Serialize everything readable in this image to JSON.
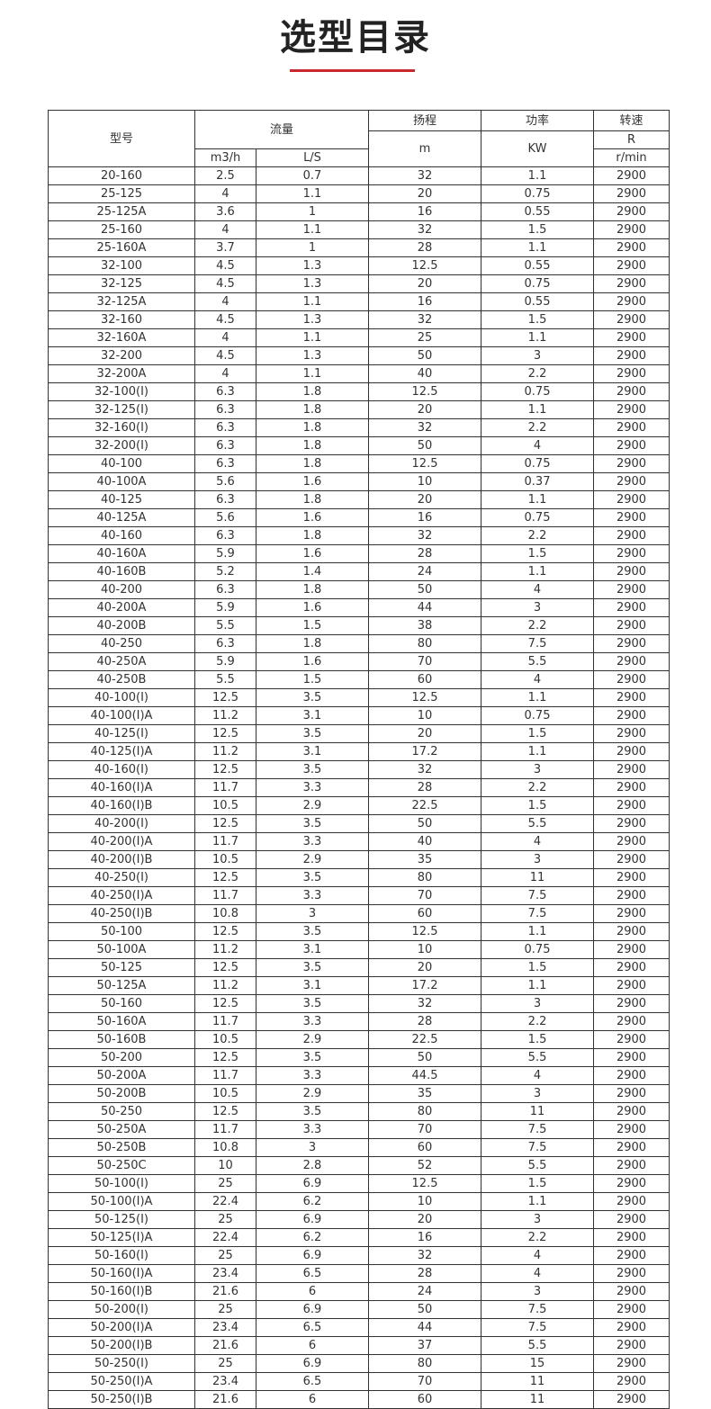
{
  "header": {
    "title": "选型目录"
  },
  "table": {
    "columns": {
      "model": "型号",
      "flow": "流量",
      "flow_m3h": "m3/h",
      "flow_ls": "L/S",
      "head": "扬程",
      "head_unit": "m",
      "power": "功率",
      "power_unit": "KW",
      "speed": "转速",
      "speed_unit_top": "R",
      "speed_unit": "r/min"
    },
    "rows": [
      [
        "20-160",
        "2.5",
        "0.7",
        "32",
        "1.1",
        "2900"
      ],
      [
        "25-125",
        "4",
        "1.1",
        "20",
        "0.75",
        "2900"
      ],
      [
        "25-125A",
        "3.6",
        "1",
        "16",
        "0.55",
        "2900"
      ],
      [
        "25-160",
        "4",
        "1.1",
        "32",
        "1.5",
        "2900"
      ],
      [
        "25-160A",
        "3.7",
        "1",
        "28",
        "1.1",
        "2900"
      ],
      [
        "32-100",
        "4.5",
        "1.3",
        "12.5",
        "0.55",
        "2900"
      ],
      [
        "32-125",
        "4.5",
        "1.3",
        "20",
        "0.75",
        "2900"
      ],
      [
        "32-125A",
        "4",
        "1.1",
        "16",
        "0.55",
        "2900"
      ],
      [
        "32-160",
        "4.5",
        "1.3",
        "32",
        "1.5",
        "2900"
      ],
      [
        "32-160A",
        "4",
        "1.1",
        "25",
        "1.1",
        "2900"
      ],
      [
        "32-200",
        "4.5",
        "1.3",
        "50",
        "3",
        "2900"
      ],
      [
        "32-200A",
        "4",
        "1.1",
        "40",
        "2.2",
        "2900"
      ],
      [
        "32-100(I)",
        "6.3",
        "1.8",
        "12.5",
        "0.75",
        "2900"
      ],
      [
        "32-125(I)",
        "6.3",
        "1.8",
        "20",
        "1.1",
        "2900"
      ],
      [
        "32-160(I)",
        "6.3",
        "1.8",
        "32",
        "2.2",
        "2900"
      ],
      [
        "32-200(I)",
        "6.3",
        "1.8",
        "50",
        "4",
        "2900"
      ],
      [
        "40-100",
        "6.3",
        "1.8",
        "12.5",
        "0.75",
        "2900"
      ],
      [
        "40-100A",
        "5.6",
        "1.6",
        "10",
        "0.37",
        "2900"
      ],
      [
        "40-125",
        "6.3",
        "1.8",
        "20",
        "1.1",
        "2900"
      ],
      [
        "40-125A",
        "5.6",
        "1.6",
        "16",
        "0.75",
        "2900"
      ],
      [
        "40-160",
        "6.3",
        "1.8",
        "32",
        "2.2",
        "2900"
      ],
      [
        "40-160A",
        "5.9",
        "1.6",
        "28",
        "1.5",
        "2900"
      ],
      [
        "40-160B",
        "5.2",
        "1.4",
        "24",
        "1.1",
        "2900"
      ],
      [
        "40-200",
        "6.3",
        "1.8",
        "50",
        "4",
        "2900"
      ],
      [
        "40-200A",
        "5.9",
        "1.6",
        "44",
        "3",
        "2900"
      ],
      [
        "40-200B",
        "5.5",
        "1.5",
        "38",
        "2.2",
        "2900"
      ],
      [
        "40-250",
        "6.3",
        "1.8",
        "80",
        "7.5",
        "2900"
      ],
      [
        "40-250A",
        "5.9",
        "1.6",
        "70",
        "5.5",
        "2900"
      ],
      [
        "40-250B",
        "5.5",
        "1.5",
        "60",
        "4",
        "2900"
      ],
      [
        "40-100(I)",
        "12.5",
        "3.5",
        "12.5",
        "1.1",
        "2900"
      ],
      [
        "40-100(I)A",
        "11.2",
        "3.1",
        "10",
        "0.75",
        "2900"
      ],
      [
        "40-125(I)",
        "12.5",
        "3.5",
        "20",
        "1.5",
        "2900"
      ],
      [
        "40-125(I)A",
        "11.2",
        "3.1",
        "17.2",
        "1.1",
        "2900"
      ],
      [
        "40-160(I)",
        "12.5",
        "3.5",
        "32",
        "3",
        "2900"
      ],
      [
        "40-160(I)A",
        "11.7",
        "3.3",
        "28",
        "2.2",
        "2900"
      ],
      [
        "40-160(I)B",
        "10.5",
        "2.9",
        "22.5",
        "1.5",
        "2900"
      ],
      [
        "40-200(I)",
        "12.5",
        "3.5",
        "50",
        "5.5",
        "2900"
      ],
      [
        "40-200(I)A",
        "11.7",
        "3.3",
        "40",
        "4",
        "2900"
      ],
      [
        "40-200(I)B",
        "10.5",
        "2.9",
        "35",
        "3",
        "2900"
      ],
      [
        "40-250(I)",
        "12.5",
        "3.5",
        "80",
        "11",
        "2900"
      ],
      [
        "40-250(I)A",
        "11.7",
        "3.3",
        "70",
        "7.5",
        "2900"
      ],
      [
        "40-250(I)B",
        "10.8",
        "3",
        "60",
        "7.5",
        "2900"
      ],
      [
        "50-100",
        "12.5",
        "3.5",
        "12.5",
        "1.1",
        "2900"
      ],
      [
        "50-100A",
        "11.2",
        "3.1",
        "10",
        "0.75",
        "2900"
      ],
      [
        "50-125",
        "12.5",
        "3.5",
        "20",
        "1.5",
        "2900"
      ],
      [
        "50-125A",
        "11.2",
        "3.1",
        "17.2",
        "1.1",
        "2900"
      ],
      [
        "50-160",
        "12.5",
        "3.5",
        "32",
        "3",
        "2900"
      ],
      [
        "50-160A",
        "11.7",
        "3.3",
        "28",
        "2.2",
        "2900"
      ],
      [
        "50-160B",
        "10.5",
        "2.9",
        "22.5",
        "1.5",
        "2900"
      ],
      [
        "50-200",
        "12.5",
        "3.5",
        "50",
        "5.5",
        "2900"
      ],
      [
        "50-200A",
        "11.7",
        "3.3",
        "44.5",
        "4",
        "2900"
      ],
      [
        "50-200B",
        "10.5",
        "2.9",
        "35",
        "3",
        "2900"
      ],
      [
        "50-250",
        "12.5",
        "3.5",
        "80",
        "11",
        "2900"
      ],
      [
        "50-250A",
        "11.7",
        "3.3",
        "70",
        "7.5",
        "2900"
      ],
      [
        "50-250B",
        "10.8",
        "3",
        "60",
        "7.5",
        "2900"
      ],
      [
        "50-250C",
        "10",
        "2.8",
        "52",
        "5.5",
        "2900"
      ],
      [
        "50-100(I)",
        "25",
        "6.9",
        "12.5",
        "1.5",
        "2900"
      ],
      [
        "50-100(I)A",
        "22.4",
        "6.2",
        "10",
        "1.1",
        "2900"
      ],
      [
        "50-125(I)",
        "25",
        "6.9",
        "20",
        "3",
        "2900"
      ],
      [
        "50-125(I)A",
        "22.4",
        "6.2",
        "16",
        "2.2",
        "2900"
      ],
      [
        "50-160(I)",
        "25",
        "6.9",
        "32",
        "4",
        "2900"
      ],
      [
        "50-160(I)A",
        "23.4",
        "6.5",
        "28",
        "4",
        "2900"
      ],
      [
        "50-160(I)B",
        "21.6",
        "6",
        "24",
        "3",
        "2900"
      ],
      [
        "50-200(I)",
        "25",
        "6.9",
        "50",
        "7.5",
        "2900"
      ],
      [
        "50-200(I)A",
        "23.4",
        "6.5",
        "44",
        "7.5",
        "2900"
      ],
      [
        "50-200(I)B",
        "21.6",
        "6",
        "37",
        "5.5",
        "2900"
      ],
      [
        "50-250(I)",
        "25",
        "6.9",
        "80",
        "15",
        "2900"
      ],
      [
        "50-250(I)A",
        "23.4",
        "6.5",
        "70",
        "11",
        "2900"
      ],
      [
        "50-250(I)B",
        "21.6",
        "6",
        "60",
        "11",
        "2900"
      ]
    ]
  }
}
